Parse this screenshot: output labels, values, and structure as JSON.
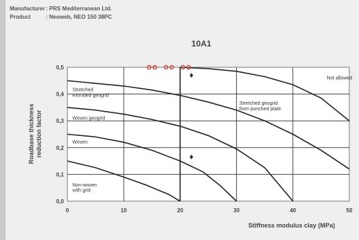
{
  "header": {
    "manufacturer_label": "Manufacturer",
    "manufacturer_value": ": PRS Mediterranean Ltd.",
    "product_label": "Product",
    "product_value": ": Neoweb, NEO 150 38PC"
  },
  "chart_data": {
    "type": "line",
    "title": "10A1",
    "xlabel": "Stiffness modulus clay (MPa)",
    "ylabel_lines": [
      "Roadbase thickness",
      "reduction factor"
    ],
    "xlim": [
      0,
      50
    ],
    "ylim": [
      0,
      0.5
    ],
    "xticks": [
      "0",
      "10",
      "20",
      "30",
      "40",
      "50"
    ],
    "yticks": [
      "0,0",
      "0,1",
      "0,2",
      "0,3",
      "0,4",
      "0,5"
    ],
    "grid": true,
    "line_color": "#222222",
    "marker_color": "#c0392b",
    "series": [
      {
        "x": [
          0,
          5,
          10,
          14,
          18,
          20
        ],
        "y": [
          0.15,
          0.125,
          0.09,
          0.06,
          0.025,
          0
        ]
      },
      {
        "x": [
          0,
          5,
          10,
          15,
          20,
          24,
          27,
          30
        ],
        "y": [
          0.25,
          0.24,
          0.22,
          0.19,
          0.15,
          0.11,
          0.06,
          0
        ]
      },
      {
        "x": [
          0,
          5,
          10,
          15,
          20,
          25,
          30,
          35,
          40
        ],
        "y": [
          0.35,
          0.34,
          0.325,
          0.305,
          0.28,
          0.245,
          0.195,
          0.125,
          0
        ]
      },
      {
        "x": [
          0,
          5,
          10,
          15,
          20,
          25,
          30,
          35,
          40,
          45,
          50
        ],
        "y": [
          0.45,
          0.44,
          0.43,
          0.415,
          0.395,
          0.37,
          0.34,
          0.3,
          0.25,
          0.19,
          0.12
        ]
      },
      {
        "x": [
          20,
          25,
          30,
          35,
          40,
          45,
          50
        ],
        "y": [
          0.5,
          0.495,
          0.485,
          0.465,
          0.435,
          0.385,
          0.3
        ]
      }
    ],
    "boundary_line": {
      "x": [
        20,
        20
      ],
      "y": [
        0,
        0.5
      ]
    },
    "region_labels": [
      {
        "text": "Not allowed",
        "x": 46,
        "y": 0.455
      },
      {
        "text": "Stretched geogrid",
        "x": 30.5,
        "y": 0.36
      },
      {
        "text": "from punched plate",
        "x": 30.5,
        "y": 0.34
      },
      {
        "text": "Stretched",
        "x": 0.9,
        "y": 0.41
      },
      {
        "text": "extruded geogrid",
        "x": 0.9,
        "y": 0.39
      },
      {
        "text": "Woven geogrid",
        "x": 0.9,
        "y": 0.305
      },
      {
        "text": "Woven",
        "x": 0.9,
        "y": 0.215
      },
      {
        "text": "Non-woven",
        "x": 0.9,
        "y": 0.055
      },
      {
        "text": "with grid",
        "x": 0.9,
        "y": 0.035
      }
    ],
    "markers": [
      {
        "x": 14.5,
        "y": 0.5
      },
      {
        "x": 15.5,
        "y": 0.5
      },
      {
        "x": 17.5,
        "y": 0.5
      },
      {
        "x": 18.5,
        "y": 0.5
      },
      {
        "x": 20.5,
        "y": 0.5
      },
      {
        "x": 21.5,
        "y": 0.5
      }
    ],
    "diamonds": [
      {
        "x": 22,
        "y": 0.47
      },
      {
        "x": 22,
        "y": 0.165
      }
    ]
  }
}
